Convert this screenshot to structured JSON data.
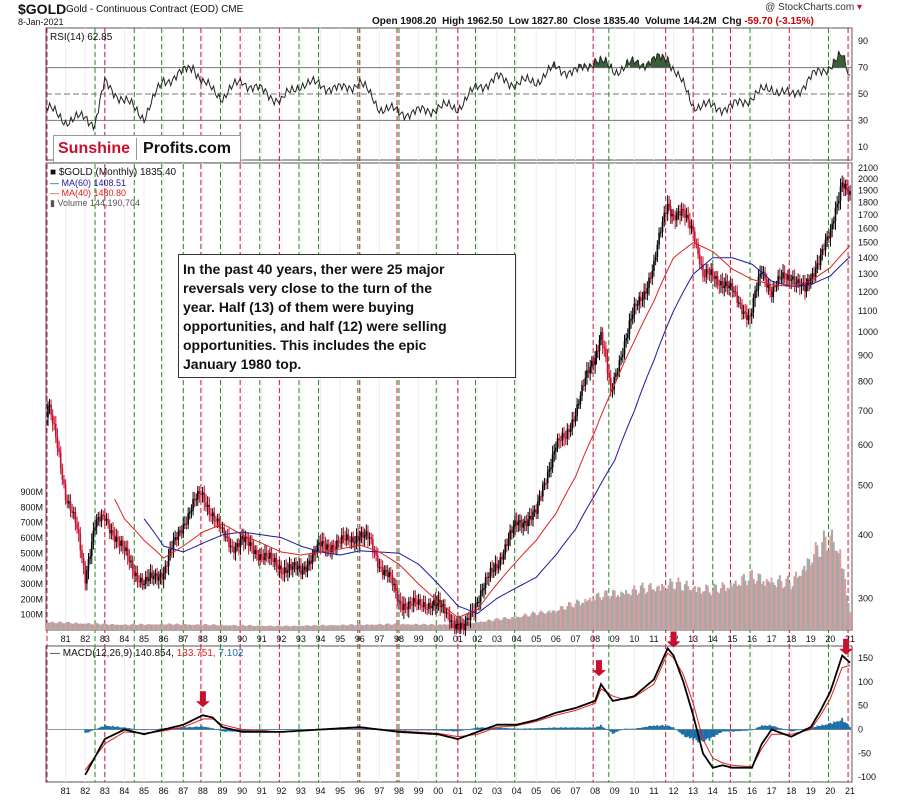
{
  "header": {
    "symbol": "$GOLD",
    "description": "Gold - Continuous Contract (EOD)",
    "exchange": "CME",
    "date": "8-Jan-2021",
    "open_label": "Open",
    "open": "1908.20",
    "high_label": "High",
    "high": "1962.50",
    "low_label": "Low",
    "low": "1827.80",
    "close_label": "Close",
    "close": "1835.40",
    "volume_label": "Volume",
    "volume": "144.2M",
    "chg_label": "Chg",
    "chg": "-59.70 (-3.15%)",
    "brand": "@ StockCharts.com",
    "brand_icon": "triangle-down-icon"
  },
  "logo": {
    "part1": "Sunshine",
    "part2": "Profits.com"
  },
  "annotation": {
    "lines": [
      "In the past 40 years, ther were 25 major",
      "reversals very close to the turn of the",
      "year. Half (13) of them were buying",
      "opportunities, and half (12) were selling",
      "opportunities. This includes the epic",
      "January 1980 top."
    ]
  },
  "colors": {
    "price_up": "#000000",
    "price_down": "#c8102e",
    "ma60": "#1a1aa0",
    "ma40": "#dd2222",
    "rsi_line": "#222222",
    "rsi_overbought_fill": "#3b5e3b",
    "macd_line": "#000000",
    "macd_signal": "#dd2222",
    "macd_hist": "#1a6fa8",
    "volume_up": "#a8a8a8",
    "volume_down": "#e89a9a",
    "buy_marker": "#1e8a1e",
    "sell_marker": "#c8102e",
    "arrow": "#c8102e"
  },
  "chart_data": [
    {
      "type": "line",
      "panel": "rsi",
      "legend": "RSI(14) 62.85",
      "y_ticks": [
        10,
        30,
        50,
        70,
        90
      ],
      "ylim": [
        0,
        100
      ],
      "reference_lines": [
        30,
        50,
        70
      ],
      "x": [
        1980.0,
        1981.0,
        1982.0,
        1982.5,
        1983.0,
        1984.0,
        1985.0,
        1986.0,
        1987.0,
        1987.5,
        1988.0,
        1989.0,
        1990.0,
        1991.0,
        1992.0,
        1993.0,
        1994.0,
        1995.0,
        1996.0,
        1997.0,
        1998.0,
        1999.0,
        2000.0,
        2001.0,
        2002.0,
        2003.0,
        2004.0,
        2005.0,
        2006.0,
        2007.0,
        2008.0,
        2009.0,
        2010.0,
        2011.0,
        2011.7,
        2012.5,
        2013.0,
        2014.0,
        2015.0,
        2016.0,
        2017.0,
        2018.0,
        2019.0,
        2020.0,
        2020.6,
        2021.0
      ],
      "values": [
        40,
        30,
        32,
        28,
        58,
        45,
        33,
        60,
        66,
        72,
        58,
        48,
        60,
        52,
        45,
        58,
        57,
        53,
        59,
        40,
        36,
        36,
        40,
        40,
        55,
        62,
        58,
        60,
        70,
        66,
        76,
        68,
        73,
        75,
        78,
        56,
        42,
        40,
        40,
        48,
        55,
        48,
        62,
        72,
        78,
        63
      ]
    },
    {
      "type": "candlestick",
      "panel": "price",
      "title": "$GOLD (Monthly) 1835.40",
      "scale": "log",
      "y_ticks": [
        300,
        400,
        500,
        600,
        700,
        800,
        900,
        1000,
        1100,
        1200,
        1300,
        1400,
        1500,
        1600,
        1700,
        1800,
        1900,
        2000,
        2100
      ],
      "ylim": [
        260,
        2150
      ],
      "x_ticks": [
        "81",
        "82",
        "83",
        "84",
        "85",
        "86",
        "87",
        "88",
        "89",
        "90",
        "91",
        "92",
        "93",
        "94",
        "95",
        "96",
        "97",
        "98",
        "99",
        "00",
        "01",
        "02",
        "03",
        "04",
        "05",
        "06",
        "07",
        "08",
        "09",
        "10",
        "11",
        "12",
        "13",
        "14",
        "15",
        "16",
        "17",
        "18",
        "19",
        "20",
        "21"
      ],
      "x": [
        1980.0,
        1980.1,
        1980.5,
        1981.0,
        1981.5,
        1982.0,
        1982.5,
        1983.0,
        1983.5,
        1984.0,
        1984.5,
        1985.0,
        1985.5,
        1986.0,
        1986.5,
        1987.0,
        1987.5,
        1987.9,
        1988.5,
        1989.0,
        1989.5,
        1990.0,
        1991.0,
        1992.0,
        1993.0,
        1994.0,
        1995.0,
        1996.0,
        1996.5,
        1997.0,
        1997.5,
        1998.0,
        1999.0,
        1999.7,
        2000.5,
        2001.0,
        2001.3,
        2002.0,
        2003.0,
        2004.0,
        2005.0,
        2006.0,
        2006.5,
        2007.0,
        2008.0,
        2008.3,
        2008.8,
        2009.5,
        2010.0,
        2010.5,
        2011.0,
        2011.7,
        2012.0,
        2012.5,
        2013.0,
        2013.5,
        2014.0,
        2014.5,
        2015.0,
        2015.9,
        2016.5,
        2017.0,
        2017.5,
        2018.0,
        2018.7,
        2019.0,
        2019.5,
        2020.0,
        2020.6,
        2021.0
      ],
      "close": [
        680,
        720,
        620,
        480,
        420,
        330,
        420,
        430,
        400,
        370,
        340,
        320,
        330,
        340,
        380,
        420,
        460,
        480,
        440,
        400,
        380,
        390,
        365,
        345,
        340,
        380,
        385,
        400,
        390,
        350,
        330,
        295,
        290,
        295,
        280,
        265,
        260,
        300,
        350,
        420,
        440,
        600,
        620,
        700,
        900,
        1000,
        750,
        960,
        1100,
        1200,
        1350,
        1800,
        1700,
        1700,
        1600,
        1280,
        1300,
        1250,
        1200,
        1060,
        1330,
        1200,
        1270,
        1300,
        1200,
        1280,
        1420,
        1550,
        2000,
        1835
      ]
    },
    {
      "type": "line",
      "panel": "price",
      "legend": "MA(60) 1408.51",
      "x": [
        1985.0,
        1986.0,
        1987.0,
        1988.0,
        1989.0,
        1990.0,
        1991.0,
        1992.0,
        1993.0,
        1994.0,
        1995.0,
        1996.0,
        1997.0,
        1998.0,
        1999.0,
        2000.0,
        2001.0,
        2002.0,
        2003.0,
        2004.0,
        2005.0,
        2006.0,
        2007.0,
        2008.0,
        2009.0,
        2010.0,
        2011.0,
        2012.0,
        2013.0,
        2014.0,
        2015.0,
        2016.0,
        2017.0,
        2018.0,
        2019.0,
        2020.0,
        2021.0
      ],
      "values": [
        430,
        380,
        370,
        385,
        400,
        405,
        400,
        395,
        380,
        370,
        365,
        372,
        370,
        368,
        350,
        320,
        290,
        280,
        300,
        315,
        330,
        365,
        410,
        480,
        560,
        700,
        880,
        1100,
        1300,
        1400,
        1400,
        1360,
        1260,
        1230,
        1240,
        1290,
        1408
      ]
    },
    {
      "type": "line",
      "panel": "price",
      "legend": "MA(40) 1480.80",
      "x": [
        1983.5,
        1984.0,
        1985.0,
        1986.0,
        1987.0,
        1988.0,
        1989.0,
        1990.0,
        1991.0,
        1992.0,
        1993.0,
        1994.0,
        1995.0,
        1996.0,
        1997.0,
        1998.0,
        1999.0,
        2000.0,
        2001.0,
        2002.0,
        2003.0,
        2004.0,
        2005.0,
        2006.0,
        2007.0,
        2008.0,
        2009.0,
        2010.0,
        2011.0,
        2012.0,
        2013.0,
        2014.0,
        2015.0,
        2016.0,
        2017.0,
        2018.0,
        2019.0,
        2020.0,
        2021.0
      ],
      "values": [
        470,
        430,
        390,
        360,
        380,
        405,
        420,
        400,
        385,
        370,
        365,
        370,
        375,
        382,
        370,
        350,
        320,
        295,
        275,
        285,
        320,
        355,
        390,
        440,
        520,
        640,
        790,
        960,
        1150,
        1400,
        1500,
        1440,
        1330,
        1270,
        1240,
        1230,
        1260,
        1340,
        1480
      ]
    },
    {
      "type": "bar",
      "panel": "volume",
      "legend": "Volume 144,190,704",
      "y_ticks": [
        "100M",
        "200M",
        "300M",
        "400M",
        "500M",
        "600M",
        "700M",
        "800M",
        "900M"
      ],
      "ylim": [
        0,
        900
      ],
      "x": [
        1980,
        1982,
        1984,
        1986,
        1988,
        1990,
        1992,
        1994,
        1996,
        1998,
        2000,
        2002,
        2004,
        2006,
        2008,
        2010,
        2012,
        2014,
        2016,
        2018,
        2019,
        2020,
        2020.5,
        2021
      ],
      "values": [
        60,
        50,
        40,
        45,
        40,
        35,
        30,
        35,
        40,
        45,
        40,
        60,
        100,
        150,
        250,
        300,
        350,
        300,
        400,
        350,
        550,
        700,
        600,
        144
      ]
    },
    {
      "type": "line",
      "panel": "macd",
      "legend": "MACD(12,26,9) 140.854, 133.751, 7.102",
      "legend_parts": [
        "MACD(12,26,9)",
        "140.854,",
        "133.751,",
        "7.102"
      ],
      "y_ticks": [
        -100,
        -50,
        0,
        50,
        100,
        150
      ],
      "ylim": [
        -110,
        175
      ],
      "x": [
        1982.0,
        1983.0,
        1984.0,
        1985.0,
        1986.0,
        1987.0,
        1988.0,
        1988.5,
        1989.0,
        1990.0,
        1992.0,
        1994.0,
        1996.0,
        1998.0,
        2000.0,
        2001.0,
        2002.0,
        2003.0,
        2004.0,
        2005.0,
        2006.0,
        2007.0,
        2008.0,
        2008.3,
        2008.9,
        2009.5,
        2010.0,
        2011.0,
        2011.7,
        2012.0,
        2012.5,
        2013.0,
        2013.5,
        2014.0,
        2014.5,
        2015.0,
        2016.0,
        2016.5,
        2017.0,
        2018.0,
        2019.0,
        2019.5,
        2020.0,
        2020.6,
        2021.0
      ],
      "macd": [
        -95,
        -20,
        0,
        -10,
        0,
        10,
        30,
        25,
        5,
        -5,
        -5,
        0,
        5,
        -5,
        -10,
        -20,
        -5,
        10,
        10,
        20,
        35,
        45,
        60,
        95,
        60,
        65,
        70,
        105,
        170,
        155,
        100,
        30,
        -50,
        -80,
        -75,
        -80,
        -80,
        -30,
        0,
        -15,
        5,
        40,
        80,
        155,
        140
      ],
      "signal": [
        -85,
        -30,
        -5,
        -8,
        -3,
        5,
        22,
        22,
        10,
        0,
        -5,
        0,
        3,
        -3,
        -8,
        -15,
        -10,
        5,
        8,
        17,
        30,
        40,
        55,
        85,
        70,
        63,
        68,
        95,
        160,
        150,
        115,
        55,
        -20,
        -60,
        -70,
        -75,
        -78,
        -40,
        -10,
        -10,
        0,
        30,
        65,
        130,
        134
      ],
      "histogram": [
        -10,
        10,
        5,
        -2,
        3,
        5,
        8,
        3,
        -5,
        -5,
        0,
        0,
        2,
        -2,
        -2,
        -5,
        5,
        5,
        2,
        3,
        5,
        5,
        5,
        10,
        -10,
        2,
        2,
        10,
        10,
        5,
        -15,
        -25,
        -30,
        -20,
        -5,
        -5,
        -2,
        10,
        10,
        -5,
        5,
        10,
        15,
        25,
        7
      ]
    }
  ],
  "markers": {
    "buy_years": [
      1982.5,
      1984.5,
      1985.9,
      1987.0,
      1988.9,
      1990.9,
      1992.9,
      1993.9,
      1995.9,
      1998.0,
      1999.9,
      2001.9,
      2003.9,
      2008.7,
      2014.0,
      2015.9,
      2019.9
    ],
    "sell_years": [
      1980.05,
      1983.0,
      1987.9,
      1989.9,
      1991.9,
      1996.0,
      1997.9,
      2001.0,
      2007.9,
      2011.6,
      2013.0,
      2014.9,
      2017.9,
      2020.9
    ],
    "arrow_years": [
      1988.0,
      2008.2,
      2012.0,
      2020.8
    ]
  },
  "panels": {
    "price_title": "$GOLD (Monthly) 1835.40",
    "ma60_label": "MA(60) 1408.51",
    "ma40_label": "MA(40) 1480.80",
    "volume_label": "Volume 144,190,704"
  }
}
